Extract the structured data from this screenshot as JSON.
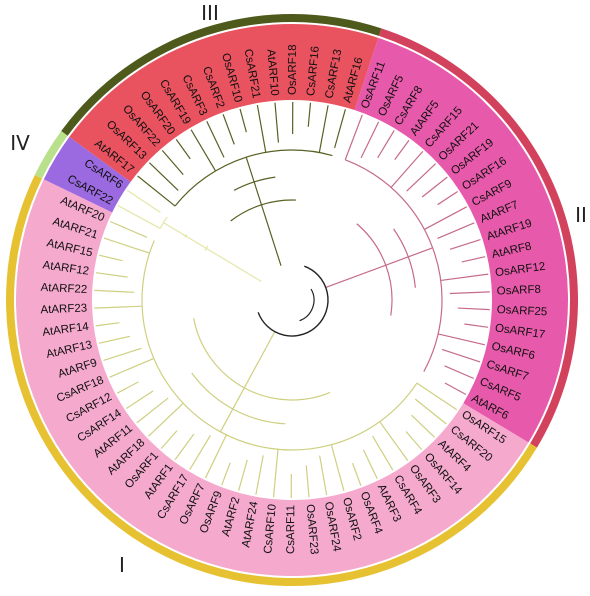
{
  "groups": [
    {
      "label": "IV",
      "leaves": [
        "CsARF22",
        "CsARF6"
      ]
    },
    {
      "label": "III",
      "leaves": [
        "AtARF17",
        "OsARF13",
        "OsARF22",
        "OsARF20",
        "CsARF19",
        "CsARF3",
        "CsARF2",
        "OsARF10",
        "CsARF21",
        "AtARF10",
        "OsARF18",
        "CsARF16",
        "CsARF13",
        "AtARF16"
      ]
    },
    {
      "label": "II",
      "leaves": [
        "OsARF11",
        "OsARF5",
        "CsARF8",
        "AtARF5",
        "CsARF15",
        "OsARF21",
        "OsARF19",
        "OsARF16",
        "CsARF9",
        "AtARF7",
        "AtARF19",
        "AtARF8",
        "OsARF12",
        "OsARF8",
        "OsARF25",
        "OsARF17",
        "OsARF6",
        "CsARF7",
        "CsARF5",
        "AtARF6"
      ]
    },
    {
      "label": "I",
      "leaves": [
        "OsARF15",
        "CsARF20",
        "AtARF4",
        "OsARF14",
        "OsARF3",
        "CsARF4",
        "AtARF3",
        "OsARF4",
        "OsARF2",
        "OsARF24",
        "OsARF23",
        "CsARF11",
        "CsARF10",
        "AtARF24",
        "AtARF2",
        "OsARF9",
        "OsARF7",
        "CsARF17",
        "AtARF1",
        "OsARF1",
        "AtARF18",
        "AtARF11",
        "CsARF14",
        "CsARF12",
        "CsARF18",
        "AtARF9",
        "AtARF13",
        "AtARF14",
        "AtARF23",
        "AtARF22",
        "AtARF12",
        "AtARF15",
        "AtARF21",
        "AtARF20"
      ]
    }
  ]
}
